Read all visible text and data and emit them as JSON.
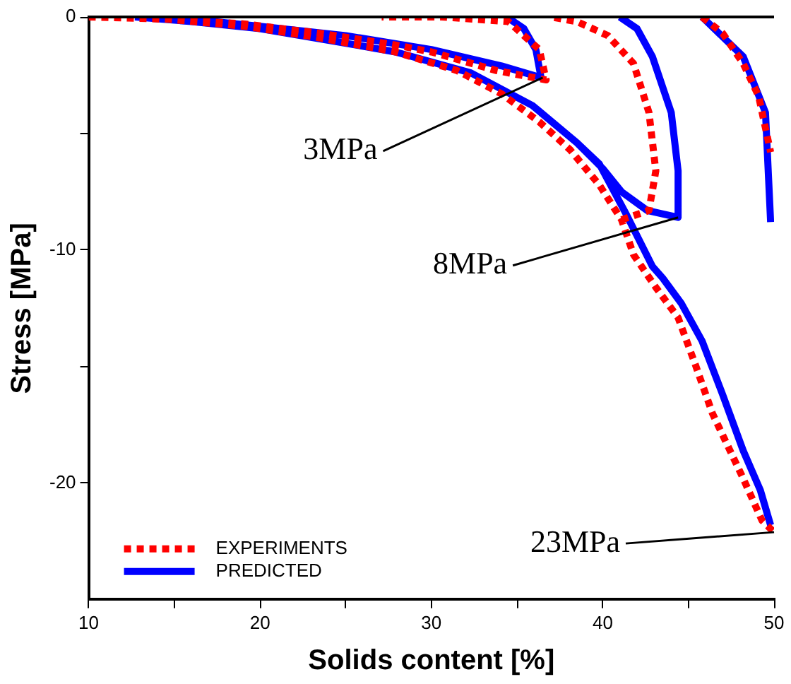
{
  "chart_data": {
    "type": "line",
    "xlabel": "Solids content [%]",
    "ylabel": "Stress [MPa]",
    "xlim": [
      10,
      50
    ],
    "xticks": [
      10,
      {
        "value": 15,
        "label": null
      },
      20,
      {
        "value": 25,
        "label": null
      },
      30,
      {
        "value": 35,
        "label": null
      },
      40,
      {
        "value": 45,
        "label": null
      },
      50
    ],
    "ylim": [
      -25,
      0
    ],
    "yticks": [
      0,
      {
        "value": -5,
        "label": null
      },
      -10,
      {
        "value": -15,
        "label": null
      },
      -20
    ],
    "grid": false,
    "legend": "bottom left",
    "marker": "none",
    "series": [
      {
        "name": "EXPERIMENTS",
        "color": "#ff0000",
        "line_style": "dotted",
        "x": [
          10,
          14.7,
          19.1,
          23.5,
          27.9,
          30,
          33.8,
          36.7,
          36.3,
          34.5,
          30.6,
          27.1,
          null,
          10,
          14.7,
          19.1,
          23.5,
          27.9,
          31.5,
          34.1,
          36.3,
          38.1,
          39.8,
          41.1,
          41.8,
          43.1,
          44.4,
          45.4,
          46.4,
          47.3,
          48.2,
          49.3,
          50,
          null,
          41.1,
          42.7,
          43.1,
          42.7,
          41.8,
          40.3,
          38.5,
          37,
          null,
          45.8,
          47,
          48.2,
          49.1,
          49.8
        ],
        "values": [
          0,
          -0.1,
          -0.3,
          -0.7,
          -1.2,
          -1.5,
          -2.3,
          -2.7,
          -1.4,
          -0.2,
          0,
          0,
          null,
          0,
          -0.1,
          -0.4,
          -0.9,
          -1.5,
          -2.3,
          -3.3,
          -4.5,
          -5.7,
          -7.2,
          -8.7,
          -10.2,
          -11.6,
          -12.9,
          -14.9,
          -17,
          -18.4,
          -19.8,
          -21.6,
          -22.1,
          null,
          -8.7,
          -8.3,
          -6.6,
          -4.1,
          -2,
          -0.8,
          -0.2,
          0,
          null,
          0,
          -0.7,
          -2,
          -3.4,
          -5.8
        ]
      },
      {
        "name": "PREDICTED",
        "color": "#0000ff",
        "line_style": "solid",
        "x": [
          12.7,
          16,
          20,
          25,
          30,
          34.1,
          36.4,
          36.1,
          35.4,
          34.4,
          null,
          12.7,
          16,
          20,
          24,
          27.9,
          32.3,
          35.9,
          38.5,
          39.8,
          41.4,
          42.9,
          43.5,
          44.6,
          45.8,
          47,
          48.2,
          49.2,
          49.8,
          null,
          38.5,
          40,
          41.1,
          42.6,
          44.4,
          44.4,
          44,
          42.9,
          42,
          41,
          null,
          45.8,
          48.2,
          49.5,
          49.8
        ],
        "values": [
          0,
          -0.1,
          -0.4,
          -0.8,
          -1.4,
          -2.1,
          -2.6,
          -1.4,
          -0.5,
          0,
          null,
          0,
          -0.2,
          -0.5,
          -1,
          -1.5,
          -2.4,
          -3.8,
          -5.4,
          -6.3,
          -8.5,
          -10.7,
          -11.2,
          -12.3,
          -13.9,
          -16.2,
          -18.6,
          -20.3,
          -21.8,
          null,
          -5.4,
          -6.5,
          -7.5,
          -8.3,
          -8.6,
          -6.6,
          -4.1,
          -1.7,
          -0.5,
          0,
          null,
          0,
          -1.7,
          -4.1,
          -8.8
        ]
      }
    ],
    "annotations": [
      {
        "text": "3MPa",
        "x": 36.5,
        "y": -2.6
      },
      {
        "text": "8MPa",
        "x": 44.4,
        "y": -8.6
      },
      {
        "text": "23MPa",
        "x": 50,
        "y": -22.1
      }
    ]
  }
}
